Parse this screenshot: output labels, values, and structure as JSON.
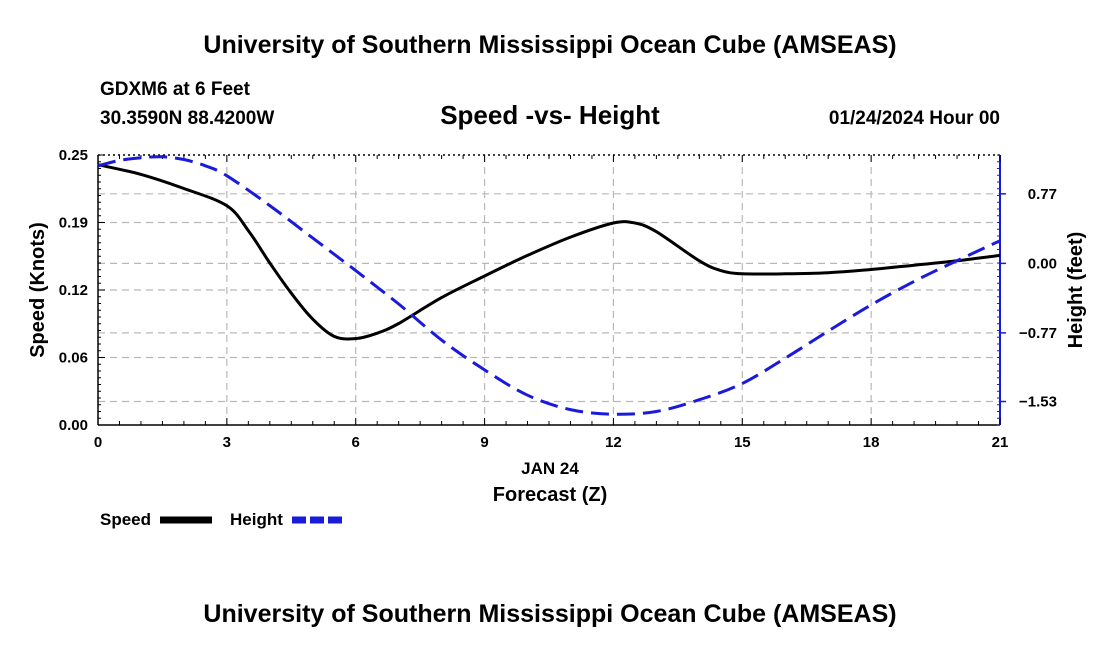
{
  "header": {
    "title_top": "University of Southern Mississippi Ocean Cube (AMSEAS)",
    "station": "GDXM6 at 6 Feet",
    "coords": "30.3590N  88.4200W",
    "plot_title": "Speed -vs- Height",
    "date": "01/24/2024 Hour 00"
  },
  "footer": {
    "title_bottom": "University of Southern Mississippi Ocean Cube (AMSEAS)"
  },
  "chart_data": {
    "type": "line",
    "title": "Speed -vs- Height",
    "xlabel": "Forecast (Z)",
    "x_sublabel": "JAN 24",
    "ylabel": "Speed (Knots)",
    "y2label": "Height (feet)",
    "xlim": [
      0,
      21
    ],
    "ylim": [
      0,
      0.25
    ],
    "y2lim": [
      -1.79,
      1.2
    ],
    "grid": true,
    "x_ticks": [
      0,
      3,
      6,
      9,
      12,
      15,
      18,
      21
    ],
    "x_tick_labels": [
      "0",
      "3",
      "6",
      "9",
      "12",
      "15",
      "18",
      "21"
    ],
    "y_ticks": [
      0,
      0.0625,
      0.125,
      0.1875,
      0.25
    ],
    "y_tick_labels": [
      "0.00",
      "0.06",
      "0.12",
      "0.19",
      "0.25"
    ],
    "y2_ticks": [
      0.77,
      0,
      -0.77,
      -1.53
    ],
    "y2_tick_labels": [
      "0.77",
      "0.00",
      "−0.77",
      "−1.53"
    ],
    "series": [
      {
        "name": "Speed",
        "axis": "left",
        "color": "#000000",
        "style": "solid",
        "x": [
          0,
          1,
          2,
          3,
          3.5,
          4,
          4.5,
          5,
          5.5,
          6,
          6.5,
          7,
          8,
          9,
          10,
          11,
          12,
          12.5,
          13,
          14,
          14.5,
          15,
          16,
          17,
          18,
          19,
          20,
          21
        ],
        "values": [
          0.241,
          0.232,
          0.219,
          0.203,
          0.18,
          0.15,
          0.122,
          0.098,
          0.082,
          0.08,
          0.085,
          0.094,
          0.118,
          0.138,
          0.157,
          0.174,
          0.187,
          0.187,
          0.179,
          0.152,
          0.143,
          0.14,
          0.14,
          0.141,
          0.144,
          0.148,
          0.152,
          0.157
        ]
      },
      {
        "name": "Height",
        "axis": "right",
        "color": "#1a1adb",
        "style": "dashed",
        "x": [
          0,
          0.5,
          1,
          1.5,
          2,
          2.5,
          3,
          4,
          5,
          6,
          7,
          8,
          9,
          10,
          11,
          12,
          13,
          14,
          15,
          16,
          17,
          18,
          19,
          20,
          21
        ],
        "values": [
          1.08,
          1.14,
          1.17,
          1.18,
          1.15,
          1.08,
          0.97,
          0.64,
          0.28,
          -0.08,
          -0.45,
          -0.85,
          -1.18,
          -1.46,
          -1.62,
          -1.67,
          -1.64,
          -1.51,
          -1.33,
          -1.05,
          -0.75,
          -0.46,
          -0.2,
          0.03,
          0.25
        ]
      }
    ],
    "legend": [
      {
        "label": "Speed",
        "color": "#000000",
        "style": "solid"
      },
      {
        "label": "Height",
        "color": "#1a1adb",
        "style": "dashed"
      }
    ]
  }
}
